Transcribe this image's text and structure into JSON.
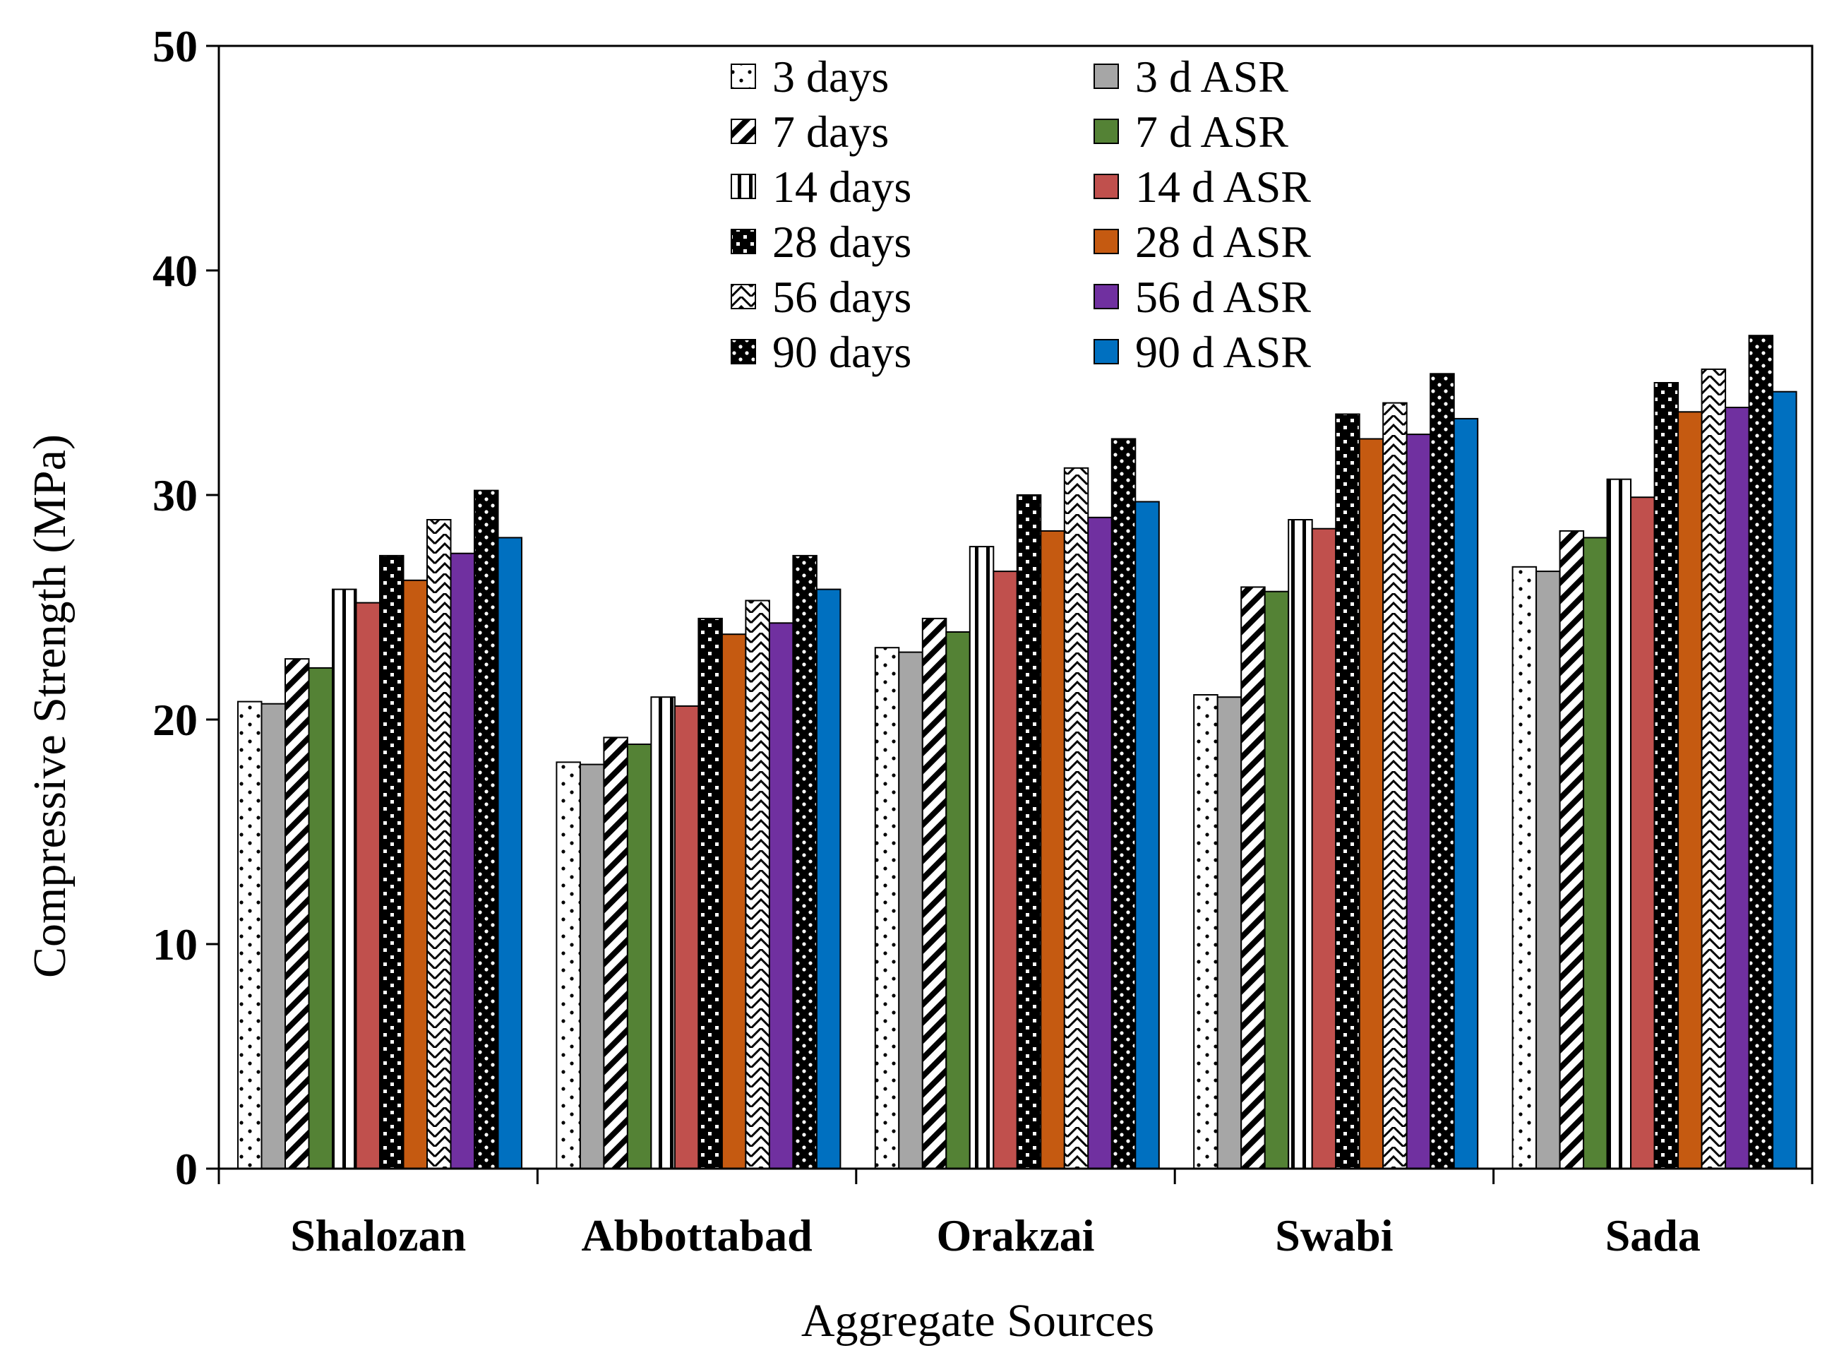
{
  "chart_data": {
    "type": "bar",
    "title": "",
    "xlabel": "Aggregate Sources",
    "ylabel": "Compressive Strength (MPa)",
    "ylim": [
      0,
      50
    ],
    "yticks": [
      0,
      10,
      20,
      30,
      40,
      50
    ],
    "grid": false,
    "legend_position": "top-center",
    "categories": [
      "Shalozan",
      "Abbottabad",
      "Orakzai",
      "Swabi",
      "Sada"
    ],
    "series": [
      {
        "name": "3 days",
        "pattern": "dots",
        "color": "#ffffff",
        "values": [
          20.8,
          18.1,
          23.2,
          21.1,
          26.8
        ]
      },
      {
        "name": "3 d ASR",
        "pattern": "solid",
        "color": "#a6a6a6",
        "values": [
          20.7,
          18.0,
          23.0,
          21.0,
          26.6
        ]
      },
      {
        "name": "7 days",
        "pattern": "diagonal",
        "color": "#ffffff",
        "values": [
          22.7,
          19.2,
          24.5,
          25.9,
          28.4
        ]
      },
      {
        "name": "7 d ASR",
        "pattern": "solid",
        "color": "#548235",
        "values": [
          22.3,
          18.9,
          23.9,
          25.7,
          28.1
        ]
      },
      {
        "name": "14 days",
        "pattern": "vertical",
        "color": "#ffffff",
        "values": [
          25.8,
          21.0,
          27.7,
          28.9,
          30.7
        ]
      },
      {
        "name": "14 d ASR",
        "pattern": "solid",
        "color": "#c0504d",
        "values": [
          25.2,
          20.6,
          26.6,
          28.5,
          29.9
        ]
      },
      {
        "name": "28 days",
        "pattern": "checker",
        "color": "#000000",
        "values": [
          27.3,
          24.5,
          30.0,
          33.6,
          35.0
        ]
      },
      {
        "name": "28 d ASR",
        "pattern": "solid",
        "color": "#c55a11",
        "values": [
          26.2,
          23.8,
          28.4,
          32.5,
          33.7
        ]
      },
      {
        "name": "56 days",
        "pattern": "zigzag",
        "color": "#ffffff",
        "values": [
          28.9,
          25.3,
          31.2,
          34.1,
          35.6
        ]
      },
      {
        "name": "56 d ASR",
        "pattern": "solid",
        "color": "#7030a0",
        "values": [
          27.4,
          24.3,
          29.0,
          32.7,
          33.9
        ]
      },
      {
        "name": "90 days",
        "pattern": "darkdots",
        "color": "#000000",
        "values": [
          30.2,
          27.3,
          32.5,
          35.4,
          37.1
        ]
      },
      {
        "name": "90 d ASR",
        "pattern": "solid",
        "color": "#0070c0",
        "values": [
          28.1,
          25.8,
          29.7,
          33.4,
          34.6
        ]
      }
    ]
  }
}
